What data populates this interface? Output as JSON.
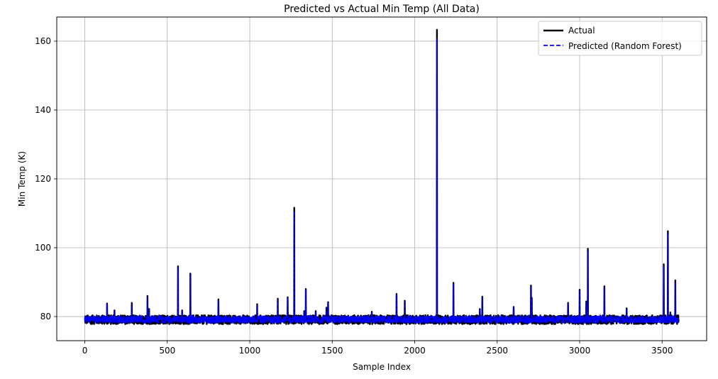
{
  "chart_data": {
    "type": "line",
    "title": "Predicted vs Actual Min Temp (All Data)",
    "xlabel": "Sample Index",
    "ylabel": "Min Temp (K)",
    "xlim": [
      -170,
      3770
    ],
    "ylim": [
      73,
      167
    ],
    "xticks": [
      0,
      500,
      1000,
      1500,
      2000,
      2500,
      3000,
      3500
    ],
    "yticks": [
      80,
      100,
      120,
      140,
      160
    ],
    "grid": true,
    "legend_position": "top-right",
    "baseline": {
      "x_range": [
        0,
        3600
      ],
      "low": 77.8,
      "high": 80.4
    },
    "spikes": [
      {
        "x": 135,
        "y": 83.8
      },
      {
        "x": 180,
        "y": 81.8
      },
      {
        "x": 285,
        "y": 84
      },
      {
        "x": 380,
        "y": 86
      },
      {
        "x": 390,
        "y": 82.2
      },
      {
        "x": 565,
        "y": 94.6
      },
      {
        "x": 590,
        "y": 81.8
      },
      {
        "x": 640,
        "y": 92.5
      },
      {
        "x": 810,
        "y": 85
      },
      {
        "x": 1045,
        "y": 83.6
      },
      {
        "x": 1170,
        "y": 85.2
      },
      {
        "x": 1230,
        "y": 85.6
      },
      {
        "x": 1270,
        "y": 111.6
      },
      {
        "x": 1330,
        "y": 81.6
      },
      {
        "x": 1340,
        "y": 88
      },
      {
        "x": 1400,
        "y": 81.6
      },
      {
        "x": 1465,
        "y": 82.6
      },
      {
        "x": 1475,
        "y": 84.2
      },
      {
        "x": 1740,
        "y": 81.4
      },
      {
        "x": 1890,
        "y": 86.6
      },
      {
        "x": 1940,
        "y": 84.6
      },
      {
        "x": 2135,
        "y": 163.3
      },
      {
        "x": 2235,
        "y": 89.8
      },
      {
        "x": 2395,
        "y": 82.2
      },
      {
        "x": 2410,
        "y": 85.8
      },
      {
        "x": 2600,
        "y": 82.8
      },
      {
        "x": 2705,
        "y": 89
      },
      {
        "x": 2710,
        "y": 85.4
      },
      {
        "x": 2930,
        "y": 84
      },
      {
        "x": 3000,
        "y": 87.8
      },
      {
        "x": 3040,
        "y": 84.4
      },
      {
        "x": 3050,
        "y": 99.7
      },
      {
        "x": 3150,
        "y": 88.8
      },
      {
        "x": 3285,
        "y": 82.4
      },
      {
        "x": 3510,
        "y": 95.2
      },
      {
        "x": 3535,
        "y": 104.8
      },
      {
        "x": 3550,
        "y": 81.2
      },
      {
        "x": 3580,
        "y": 90.5
      }
    ],
    "series": [
      {
        "name": "Actual",
        "color": "#000000",
        "style": "solid"
      },
      {
        "name": "Predicted (Random Forest)",
        "color": "#0000ff",
        "style": "dashed"
      }
    ]
  }
}
